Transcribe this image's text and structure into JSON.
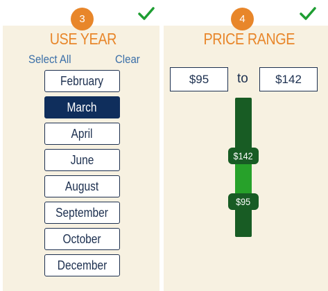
{
  "use_year": {
    "step": "3",
    "title": "USE YEAR",
    "select_all": "Select All",
    "clear": "Clear",
    "months": [
      "February",
      "March",
      "April",
      "June",
      "August",
      "September",
      "October",
      "December"
    ],
    "selected": "March"
  },
  "price_range": {
    "step": "4",
    "title": "PRICE RANGE",
    "min_value": "$95",
    "max_value": "$142",
    "separator": "to",
    "handle_min": "$95",
    "handle_max": "$142"
  },
  "colors": {
    "accent_orange": "#e8862a",
    "navy": "#0f2e5c",
    "slider_dark": "#185c24",
    "slider_fill": "#27a12a",
    "check_green": "#1e9e32"
  },
  "icons": {
    "step_complete": "check-icon"
  }
}
